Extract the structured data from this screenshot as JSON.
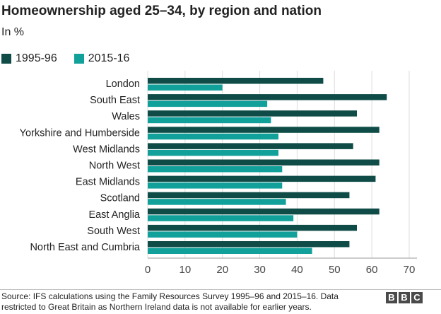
{
  "chart_data": {
    "type": "bar",
    "orientation": "horizontal",
    "title": "Homeownership aged 25–34, by region and nation",
    "subtitle": "In %",
    "categories": [
      "London",
      "South East",
      "Wales",
      "Yorkshire and Humberside",
      "West Midlands",
      "North West",
      "East Midlands",
      "Scotland",
      "East Anglia",
      "South West",
      "North East and Cumbria"
    ],
    "series": [
      {
        "name": "1995-96",
        "color": "#0f4c47",
        "values": [
          47,
          64,
          56,
          62,
          55,
          62,
          61,
          54,
          62,
          56,
          54
        ]
      },
      {
        "name": "2015-16",
        "color": "#12a09a",
        "values": [
          20,
          32,
          33,
          35,
          35,
          36,
          36,
          37,
          39,
          40,
          44
        ]
      }
    ],
    "xlim": [
      0,
      70
    ],
    "xticks": [
      "0",
      "10",
      "20",
      "30",
      "40",
      "50",
      "60",
      "70"
    ],
    "grid": true,
    "legend_position": "top-left"
  },
  "source": "Source: IFS calculations using the Family Resources Survey 1995–96 and 2015–16. Data restricted to Great Britain as Northern Ireland data is not available for earlier years.",
  "logo": {
    "letters": [
      "B",
      "B",
      "C"
    ]
  }
}
